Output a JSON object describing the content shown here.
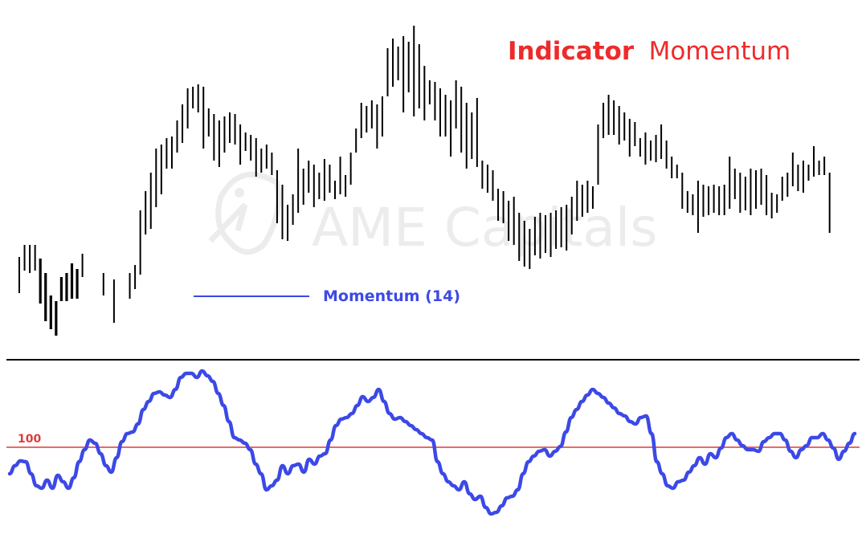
{
  "title": {
    "bold": "Indicator",
    "regular": "Momentum",
    "color": "#ee2b2b"
  },
  "watermark": "AME Capitals",
  "chart_data": [
    {
      "type": "ohlc",
      "description_series": "price bars",
      "bar_color": "#000000",
      "legend": {
        "label": "Momentum (14)",
        "color": "#3c49e6"
      },
      "bars": [
        {
          "h": 320,
          "l": 365
        },
        {
          "h": 305,
          "l": 337
        },
        {
          "h": 305,
          "l": 340
        },
        {
          "h": 305,
          "l": 337
        },
        {
          "h": 322,
          "l": 378
        },
        {
          "h": 340,
          "l": 400
        },
        {
          "h": 368,
          "l": 410
        },
        {
          "h": 375,
          "l": 418
        },
        {
          "h": 345,
          "l": 375
        },
        {
          "h": 340,
          "l": 375
        },
        {
          "h": 328,
          "l": 372
        },
        {
          "h": 335,
          "l": 372
        },
        {
          "h": 316,
          "l": 345
        },
        {
          "h": null,
          "l": null
        },
        {
          "h": null,
          "l": null
        },
        {
          "h": null,
          "l": null
        },
        {
          "h": 340,
          "l": 368
        },
        {
          "h": null,
          "l": null
        },
        {
          "h": 348,
          "l": 402
        },
        {
          "h": null,
          "l": null
        },
        {
          "h": null,
          "l": null
        },
        {
          "h": 340,
          "l": 372
        },
        {
          "h": 330,
          "l": 360
        },
        {
          "h": 262,
          "l": 342
        },
        {
          "h": 238,
          "l": 292
        },
        {
          "h": 215,
          "l": 285
        },
        {
          "h": 185,
          "l": 258
        },
        {
          "h": 180,
          "l": 242
        },
        {
          "h": 172,
          "l": 210
        },
        {
          "h": 170,
          "l": 210
        },
        {
          "h": 150,
          "l": 190
        },
        {
          "h": 130,
          "l": 178
        },
        {
          "h": 110,
          "l": 160
        },
        {
          "h": 108,
          "l": 135
        },
        {
          "h": 105,
          "l": 140
        },
        {
          "h": 108,
          "l": 185
        },
        {
          "h": 135,
          "l": 170
        },
        {
          "h": 142,
          "l": 200
        },
        {
          "h": 150,
          "l": 208
        },
        {
          "h": 145,
          "l": 190
        },
        {
          "h": 140,
          "l": 178
        },
        {
          "h": 142,
          "l": 180
        },
        {
          "h": 155,
          "l": 205
        },
        {
          "h": 165,
          "l": 188
        },
        {
          "h": 168,
          "l": 200
        },
        {
          "h": 172,
          "l": 220
        },
        {
          "h": 185,
          "l": 215
        },
        {
          "h": 180,
          "l": 210
        },
        {
          "h": 190,
          "l": 218
        },
        {
          "h": 212,
          "l": 278
        },
        {
          "h": 230,
          "l": 298
        },
        {
          "h": 255,
          "l": 300
        },
        {
          "h": 242,
          "l": 280
        },
        {
          "h": 185,
          "l": 265
        },
        {
          "h": 210,
          "l": 255
        },
        {
          "h": 200,
          "l": 240
        },
        {
          "h": 205,
          "l": 258
        },
        {
          "h": 215,
          "l": 248
        },
        {
          "h": 198,
          "l": 250
        },
        {
          "h": 205,
          "l": 240
        },
        {
          "h": 225,
          "l": 248
        },
        {
          "h": 195,
          "l": 242
        },
        {
          "h": 218,
          "l": 245
        },
        {
          "h": 190,
          "l": 230
        },
        {
          "h": 160,
          "l": 190
        },
        {
          "h": 128,
          "l": 172
        },
        {
          "h": 132,
          "l": 165
        },
        {
          "h": 125,
          "l": 160
        },
        {
          "h": 130,
          "l": 185
        },
        {
          "h": 120,
          "l": 170
        },
        {
          "h": 60,
          "l": 120
        },
        {
          "h": 48,
          "l": 108
        },
        {
          "h": 58,
          "l": 100
        },
        {
          "h": 45,
          "l": 140
        },
        {
          "h": 52,
          "l": 115
        },
        {
          "h": 32,
          "l": 145
        },
        {
          "h": 55,
          "l": 135
        },
        {
          "h": 82,
          "l": 150
        },
        {
          "h": 100,
          "l": 130
        },
        {
          "h": 102,
          "l": 150
        },
        {
          "h": 110,
          "l": 170
        },
        {
          "h": 118,
          "l": 170
        },
        {
          "h": 125,
          "l": 195
        },
        {
          "h": 100,
          "l": 160
        },
        {
          "h": 108,
          "l": 190
        },
        {
          "h": 128,
          "l": 210
        },
        {
          "h": 140,
          "l": 198
        },
        {
          "h": 122,
          "l": 208
        },
        {
          "h": 200,
          "l": 235
        },
        {
          "h": 205,
          "l": 240
        },
        {
          "h": 212,
          "l": 250
        },
        {
          "h": 235,
          "l": 275
        },
        {
          "h": 238,
          "l": 278
        },
        {
          "h": 250,
          "l": 300
        },
        {
          "h": 245,
          "l": 305
        },
        {
          "h": 265,
          "l": 325
        },
        {
          "h": 275,
          "l": 332
        },
        {
          "h": 285,
          "l": 335
        },
        {
          "h": 270,
          "l": 318
        },
        {
          "h": 265,
          "l": 322
        },
        {
          "h": 268,
          "l": 315
        },
        {
          "h": 265,
          "l": 320
        },
        {
          "h": 262,
          "l": 310
        },
        {
          "h": 258,
          "l": 308
        },
        {
          "h": 255,
          "l": 312
        },
        {
          "h": 245,
          "l": 292
        },
        {
          "h": 225,
          "l": 275
        },
        {
          "h": 230,
          "l": 270
        },
        {
          "h": 225,
          "l": 265
        },
        {
          "h": 232,
          "l": 260
        },
        {
          "h": 155,
          "l": 230
        },
        {
          "h": 128,
          "l": 172
        },
        {
          "h": 118,
          "l": 168
        },
        {
          "h": 125,
          "l": 168
        },
        {
          "h": 132,
          "l": 180
        },
        {
          "h": 140,
          "l": 175
        },
        {
          "h": 148,
          "l": 195
        },
        {
          "h": 152,
          "l": 182
        },
        {
          "h": 172,
          "l": 195
        },
        {
          "h": 165,
          "l": 205
        },
        {
          "h": 175,
          "l": 200
        },
        {
          "h": 168,
          "l": 202
        },
        {
          "h": 155,
          "l": 198
        },
        {
          "h": 175,
          "l": 210
        },
        {
          "h": 195,
          "l": 222
        },
        {
          "h": 205,
          "l": 222
        },
        {
          "h": 215,
          "l": 260
        },
        {
          "h": 238,
          "l": 265
        },
        {
          "h": 242,
          "l": 268
        },
        {
          "h": 225,
          "l": 290
        },
        {
          "h": 230,
          "l": 270
        },
        {
          "h": 232,
          "l": 268
        },
        {
          "h": 230,
          "l": 265
        },
        {
          "h": 232,
          "l": 268
        },
        {
          "h": 230,
          "l": 268
        },
        {
          "h": 195,
          "l": 260
        },
        {
          "h": 210,
          "l": 248
        },
        {
          "h": 215,
          "l": 265
        },
        {
          "h": 220,
          "l": 262
        },
        {
          "h": 210,
          "l": 268
        },
        {
          "h": 212,
          "l": 260
        },
        {
          "h": 210,
          "l": 255
        },
        {
          "h": 218,
          "l": 268
        },
        {
          "h": 240,
          "l": 272
        },
        {
          "h": 242,
          "l": 265
        },
        {
          "h": 220,
          "l": 250
        },
        {
          "h": 215,
          "l": 245
        },
        {
          "h": 190,
          "l": 232
        },
        {
          "h": 205,
          "l": 238
        },
        {
          "h": 200,
          "l": 240
        },
        {
          "h": 205,
          "l": 225
        },
        {
          "h": 182,
          "l": 220
        },
        {
          "h": 200,
          "l": 218
        },
        {
          "h": 195,
          "l": 218
        },
        {
          "h": 215,
          "l": 290
        }
      ]
    },
    {
      "type": "line",
      "series": [
        {
          "name": "Momentum (14)",
          "color": "#3c49e6"
        }
      ],
      "reference_line": {
        "value": 100,
        "label": "100",
        "color": "#e13a3a"
      },
      "values": [
        590,
        580,
        574,
        575,
        590,
        605,
        608,
        598,
        608,
        592,
        600,
        608,
        595,
        575,
        560,
        548,
        552,
        565,
        580,
        588,
        570,
        550,
        540,
        538,
        528,
        510,
        500,
        490,
        488,
        492,
        495,
        485,
        470,
        465,
        465,
        470,
        462,
        468,
        475,
        490,
        505,
        525,
        545,
        548,
        552,
        560,
        578,
        590,
        610,
        605,
        598,
        580,
        590,
        580,
        578,
        588,
        572,
        578,
        568,
        565,
        548,
        530,
        522,
        520,
        515,
        505,
        494,
        500,
        495,
        485,
        500,
        515,
        522,
        520,
        525,
        530,
        535,
        540,
        545,
        548,
        575,
        590,
        600,
        605,
        610,
        600,
        615,
        622,
        618,
        632,
        640,
        638,
        630,
        620,
        618,
        610,
        590,
        575,
        568,
        562,
        560,
        568,
        562,
        556,
        538,
        520,
        510,
        500,
        492,
        485,
        490,
        495,
        502,
        508,
        515,
        518,
        525,
        528,
        520,
        518,
        540,
        575,
        590,
        605,
        608,
        600,
        598,
        588,
        580,
        570,
        578,
        565,
        570,
        558,
        545,
        540,
        548,
        555,
        560,
        560,
        562,
        550,
        545,
        540,
        540,
        548,
        562,
        570,
        560,
        555,
        545,
        545,
        540,
        548,
        558,
        572,
        562,
        552,
        540
      ]
    }
  ]
}
